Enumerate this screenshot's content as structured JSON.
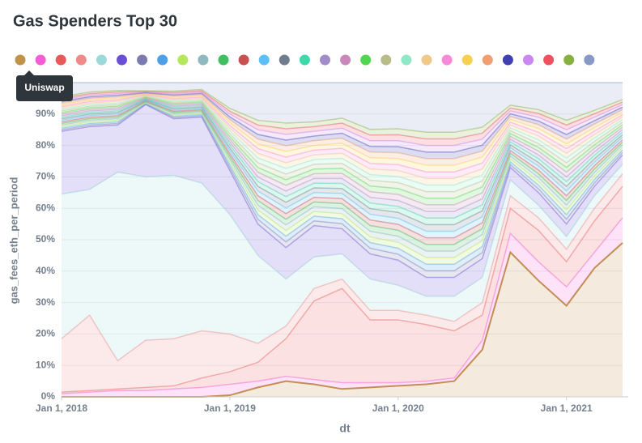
{
  "chart_data": {
    "type": "stacked_area_100",
    "title": "Gas Spenders Top 30",
    "x_label": "dt",
    "y_label": "gas_fees_eth_per_period",
    "tooltip": "chart_data.series.0.name",
    "x": [
      "2018-01",
      "2018-03",
      "2018-05",
      "2018-07",
      "2018-09",
      "2018-11",
      "2019-01",
      "2019-03",
      "2019-05",
      "2019-07",
      "2019-09",
      "2019-11",
      "2020-01",
      "2020-03",
      "2020-05",
      "2020-07",
      "2020-09",
      "2020-11",
      "2021-01",
      "2021-03",
      "2021-05"
    ],
    "xlim": [
      "2018-01",
      "2021-05"
    ],
    "xticks": [
      {
        "value": "2018-01",
        "label": "Jan 1, 2018"
      },
      {
        "value": "2019-01",
        "label": "Jan 1, 2019"
      },
      {
        "value": "2020-01",
        "label": "Jan 1, 2020"
      },
      {
        "value": "2021-01",
        "label": "Jan 1, 2021"
      }
    ],
    "ylim": [
      0,
      100
    ],
    "yticks": [
      {
        "value": 0,
        "label": "0%"
      },
      {
        "value": 10,
        "label": "10%"
      },
      {
        "value": 20,
        "label": "20%"
      },
      {
        "value": 30,
        "label": "30%"
      },
      {
        "value": 40,
        "label": "40%"
      },
      {
        "value": 50,
        "label": "50%"
      },
      {
        "value": 60,
        "label": "60%"
      },
      {
        "value": 70,
        "label": "70%"
      },
      {
        "value": 80,
        "label": "80%"
      },
      {
        "value": 90,
        "label": "90%"
      }
    ],
    "series": [
      {
        "name": "Uniswap",
        "color": "#c0924a",
        "values": [
          0,
          0,
          0,
          0,
          0,
          0,
          0.5,
          3,
          5,
          4,
          2.5,
          3,
          3.5,
          4,
          5,
          15,
          46,
          37,
          29,
          41,
          49
        ]
      },
      {
        "color": "#f55dd6",
        "values": [
          1,
          1.5,
          2,
          2,
          2.5,
          3,
          3.5,
          2,
          1.5,
          1.5,
          2,
          1.5,
          1,
          1,
          1,
          3,
          6,
          6,
          6,
          5,
          8
        ]
      },
      {
        "color": "#e85a5a",
        "values": [
          0.5,
          0.5,
          0.5,
          1,
          1,
          3,
          4,
          6,
          12,
          25,
          30,
          20,
          20,
          18,
          15,
          8,
          8,
          10,
          8,
          10,
          10
        ]
      },
      {
        "color": "#f08a8a",
        "values": [
          17,
          24,
          9,
          15,
          15,
          15,
          12,
          6,
          4,
          4,
          3,
          3,
          3,
          3,
          3,
          4,
          4,
          4,
          4,
          4,
          4
        ]
      },
      {
        "color": "#9dd8d8",
        "values": [
          46,
          40,
          60,
          52,
          52,
          47,
          38,
          28,
          15,
          10,
          8,
          10,
          8,
          6,
          8,
          8,
          5,
          4,
          4,
          4,
          3
        ]
      },
      {
        "color": "#6a4fd6",
        "values": [
          20,
          20,
          15,
          23,
          18,
          21,
          14,
          10,
          10,
          10,
          8,
          8,
          8,
          6,
          6,
          6,
          4,
          4,
          4,
          3,
          3
        ]
      },
      {
        "color": "#7b7bb0",
        "values": [
          0.5,
          0.5,
          0.5,
          0.2,
          0.4,
          0.4,
          0.9,
          1.5,
          1.8,
          1.5,
          1.6,
          1.8,
          1.9,
          2.1,
          2.1,
          1.9,
          0.9,
          1.2,
          1.5,
          1.1,
          0.8
        ]
      },
      {
        "color": "#4f9fe8",
        "values": [
          0.5,
          0.5,
          0.5,
          0.2,
          0.4,
          0.4,
          0.9,
          1.5,
          1.8,
          1.5,
          1.6,
          1.8,
          1.9,
          2.1,
          2.1,
          1.9,
          0.9,
          1.2,
          1.5,
          1.1,
          0.8
        ]
      },
      {
        "color": "#b5e85c",
        "values": [
          0.5,
          0.5,
          0.5,
          0.2,
          0.4,
          0.4,
          0.9,
          1.5,
          1.8,
          1.5,
          1.6,
          1.8,
          1.9,
          2.1,
          2.1,
          1.9,
          0.9,
          1.2,
          1.5,
          1.1,
          0.8
        ]
      },
      {
        "color": "#8fb8c0",
        "values": [
          0.5,
          0.5,
          0.5,
          0.2,
          0.4,
          0.4,
          0.9,
          1.5,
          1.8,
          1.5,
          1.6,
          1.8,
          1.9,
          2.1,
          2.1,
          1.9,
          0.9,
          1.2,
          1.5,
          1.1,
          0.8
        ]
      },
      {
        "color": "#3fbf5f",
        "values": [
          0.5,
          0.5,
          0.5,
          0.2,
          0.4,
          0.4,
          0.9,
          1.5,
          1.8,
          1.5,
          1.6,
          1.8,
          1.9,
          2.1,
          2.1,
          1.9,
          0.9,
          1.2,
          1.5,
          1.1,
          0.8
        ]
      },
      {
        "color": "#c85050",
        "values": [
          0.5,
          0.5,
          0.5,
          0.2,
          0.4,
          0.4,
          0.9,
          1.5,
          1.8,
          1.5,
          1.6,
          1.8,
          1.9,
          2.1,
          2.1,
          1.9,
          0.9,
          1.2,
          1.5,
          1.1,
          0.8
        ]
      },
      {
        "color": "#5bc0f8",
        "values": [
          0.5,
          0.5,
          0.5,
          0.2,
          0.4,
          0.4,
          0.9,
          1.5,
          1.8,
          1.5,
          1.6,
          1.8,
          1.9,
          2.1,
          2.1,
          1.9,
          0.9,
          1.2,
          1.5,
          1.1,
          0.8
        ]
      },
      {
        "color": "#6f7d8c",
        "values": [
          0.5,
          0.5,
          0.5,
          0.2,
          0.4,
          0.4,
          0.9,
          1.5,
          1.8,
          1.5,
          1.6,
          1.8,
          1.9,
          2.1,
          2.1,
          1.9,
          0.9,
          1.2,
          1.5,
          1.1,
          0.8
        ]
      },
      {
        "color": "#3fd8a8",
        "values": [
          0.5,
          0.5,
          0.5,
          0.2,
          0.4,
          0.4,
          0.9,
          1.5,
          1.8,
          1.5,
          1.6,
          1.8,
          1.9,
          2.1,
          2.1,
          1.9,
          0.9,
          1.2,
          1.5,
          1.1,
          0.8
        ]
      },
      {
        "color": "#a08cc8",
        "values": [
          0.5,
          0.5,
          0.5,
          0.2,
          0.4,
          0.4,
          0.9,
          1.5,
          1.8,
          1.5,
          1.6,
          1.8,
          1.9,
          2.1,
          2.1,
          1.9,
          0.9,
          1.2,
          1.5,
          1.1,
          0.8
        ]
      },
      {
        "color": "#c888b8",
        "values": [
          0.5,
          0.5,
          0.5,
          0.2,
          0.4,
          0.4,
          0.9,
          1.5,
          1.8,
          1.5,
          1.6,
          1.8,
          1.9,
          2.1,
          2.1,
          1.9,
          0.9,
          1.2,
          1.5,
          1.1,
          0.8
        ]
      },
      {
        "color": "#4fd84f",
        "values": [
          0.5,
          0.5,
          0.5,
          0.2,
          0.4,
          0.4,
          0.9,
          1.5,
          1.8,
          1.5,
          1.6,
          1.8,
          1.9,
          2.1,
          2.1,
          1.9,
          0.9,
          1.2,
          1.5,
          1.1,
          0.8
        ]
      },
      {
        "color": "#b8bc88",
        "values": [
          0.5,
          0.5,
          0.5,
          0.2,
          0.4,
          0.4,
          0.9,
          1.5,
          1.8,
          1.5,
          1.6,
          1.8,
          1.9,
          2.1,
          2.1,
          1.9,
          0.9,
          1.2,
          1.5,
          1.1,
          0.8
        ]
      },
      {
        "color": "#8fe8c8",
        "values": [
          0.5,
          0.5,
          0.5,
          0.2,
          0.4,
          0.4,
          0.9,
          1.5,
          1.8,
          1.5,
          1.6,
          1.8,
          1.9,
          2.1,
          2.1,
          1.9,
          0.9,
          1.2,
          1.5,
          1.1,
          0.8
        ]
      },
      {
        "color": "#f0c888",
        "values": [
          0.5,
          0.5,
          0.5,
          0.2,
          0.4,
          0.4,
          0.9,
          1.5,
          1.8,
          1.5,
          1.6,
          1.8,
          1.9,
          2.1,
          2.1,
          1.9,
          0.9,
          1.2,
          1.5,
          1.1,
          0.8
        ]
      },
      {
        "color": "#f888d8",
        "values": [
          0.5,
          0.5,
          0.5,
          0.2,
          0.4,
          0.4,
          0.9,
          1.5,
          1.8,
          1.5,
          1.6,
          1.8,
          1.9,
          2.1,
          2.1,
          1.9,
          0.9,
          1.2,
          1.5,
          1.1,
          0.8
        ]
      },
      {
        "color": "#f8d050",
        "values": [
          0.5,
          0.5,
          0.5,
          0.2,
          0.4,
          0.4,
          0.9,
          1.5,
          1.8,
          1.5,
          1.6,
          1.8,
          1.9,
          2.1,
          2.1,
          1.9,
          0.9,
          1.2,
          1.5,
          1.1,
          0.8
        ]
      },
      {
        "color": "#f0a070",
        "values": [
          0.5,
          0.5,
          0.5,
          0.2,
          0.4,
          0.4,
          0.9,
          1.5,
          1.8,
          1.5,
          1.6,
          1.8,
          1.9,
          2.1,
          2.1,
          1.9,
          0.9,
          1.2,
          1.5,
          1.1,
          0.8
        ]
      },
      {
        "color": "#4040b0",
        "values": [
          0.5,
          0.5,
          0.5,
          0.2,
          0.4,
          0.4,
          0.9,
          1.5,
          1.8,
          1.5,
          1.6,
          1.8,
          1.9,
          2.1,
          2.1,
          1.9,
          0.9,
          1.2,
          1.5,
          1.1,
          0.8
        ]
      },
      {
        "color": "#c888f0",
        "values": [
          0.5,
          0.5,
          0.5,
          0.2,
          0.4,
          0.4,
          0.9,
          1.5,
          1.8,
          1.5,
          1.6,
          1.8,
          1.9,
          2.1,
          2.1,
          1.9,
          0.9,
          1.2,
          1.5,
          1.1,
          0.8
        ]
      },
      {
        "color": "#f05060",
        "values": [
          0.5,
          0.5,
          0.5,
          0.2,
          0.4,
          0.4,
          0.9,
          1.5,
          1.8,
          1.5,
          1.6,
          1.8,
          1.9,
          2.1,
          2.1,
          1.9,
          0.9,
          1.2,
          1.5,
          1.1,
          0.8
        ]
      },
      {
        "color": "#88b040",
        "values": [
          0.5,
          0.5,
          0.5,
          0.2,
          0.4,
          0.4,
          0.9,
          1.5,
          1.8,
          1.5,
          1.6,
          1.8,
          1.9,
          2.1,
          2.1,
          1.9,
          0.9,
          1.2,
          1.5,
          1.1,
          0.8
        ]
      },
      {
        "color": "#8899c8",
        "values": [
          4.5,
          3,
          2.5,
          2.6,
          2.7,
          2.2,
          8.2,
          12,
          12.9,
          12.5,
          11.3,
          14.9,
          14.7,
          15.8,
          15.8,
          14.2,
          7.2,
          8.6,
          12,
          8.8,
          5.4
        ]
      }
    ]
  }
}
